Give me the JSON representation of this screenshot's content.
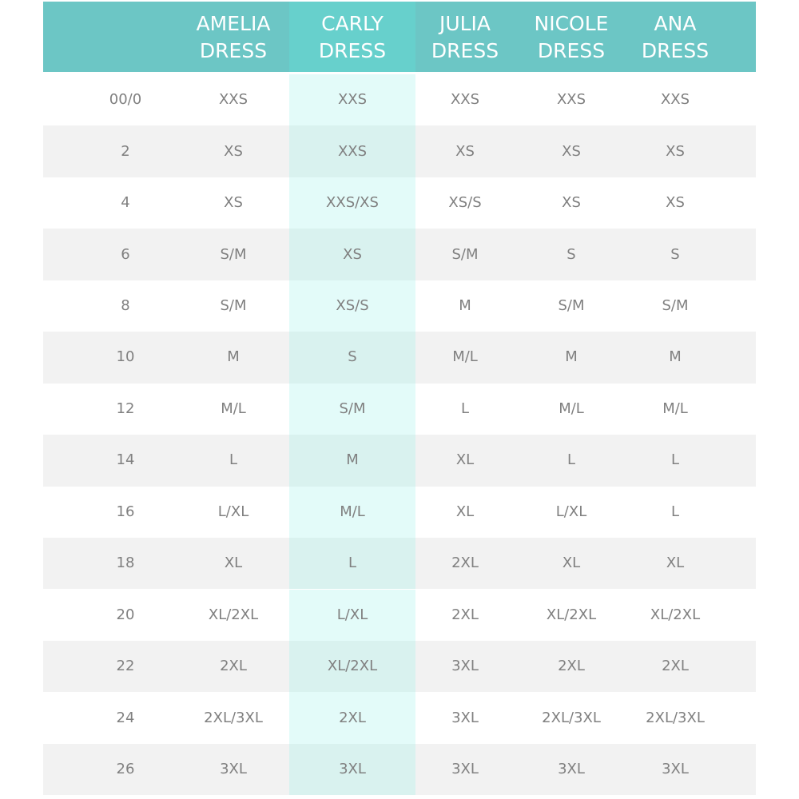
{
  "table": {
    "headers": [
      "AMELIA DRESS",
      "CARLY DRESS",
      "JULIA DRESS",
      "NICOLE DRESS",
      "ANA DRESS"
    ],
    "rows": [
      [
        "00/0",
        "XXS",
        "XXS",
        "XXS",
        "XXS",
        "XXS"
      ],
      [
        "2",
        "XS",
        "XXS",
        "XS",
        "XS",
        "XS"
      ],
      [
        "4",
        "XS",
        "XXS/XS",
        "XS/S",
        "XS",
        "XS"
      ],
      [
        "6",
        "S/M",
        "XS",
        "S/M",
        "S",
        "S"
      ],
      [
        "8",
        "S/M",
        "XS/S",
        "M",
        "S/M",
        "S/M"
      ],
      [
        "10",
        "M",
        "S",
        "M/L",
        "M",
        "M"
      ],
      [
        "12",
        "M/L",
        "S/M",
        "L",
        "M/L",
        "M/L"
      ],
      [
        "14",
        "L",
        "M",
        "XL",
        "L",
        "L"
      ],
      [
        "16",
        "L/XL",
        "M/L",
        "XL",
        "L/XL",
        "L"
      ],
      [
        "18",
        "XL",
        "L",
        "2XL",
        "XL",
        "XL"
      ],
      [
        "20",
        "XL/2XL",
        "L/XL",
        "2XL",
        "XL/2XL",
        "XL/2XL"
      ],
      [
        "22",
        "2XL",
        "XL/2XL",
        "3XL",
        "2XL",
        "2XL"
      ],
      [
        "24",
        "2XL/3XL",
        "2XL",
        "3XL",
        "2XL/3XL",
        "2XL/3XL"
      ],
      [
        "26",
        "3XL",
        "3XL",
        "3XL",
        "3XL",
        "3XL"
      ]
    ]
  }
}
